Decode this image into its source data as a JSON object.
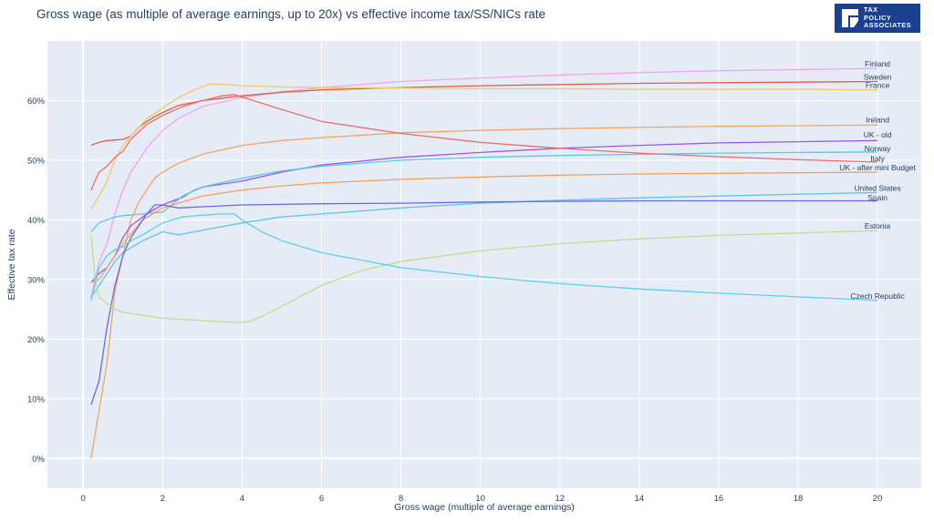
{
  "chart_data": {
    "type": "line",
    "title": "Gross wage (as multiple of average earnings, up to 20x) vs effective income tax/SS/NICs rate",
    "xlabel": "Gross wage (multiple of average earnings)",
    "ylabel": "Effective tax rate",
    "xlim": [
      -0.9,
      21.1
    ],
    "ylim": [
      -0.05,
      0.7
    ],
    "x_ticks": [
      0,
      2,
      4,
      6,
      8,
      10,
      12,
      14,
      16,
      18,
      20
    ],
    "y_ticks": [
      0,
      0.1,
      0.2,
      0.3,
      0.4,
      0.5,
      0.6
    ],
    "y_tick_labels": [
      "0%",
      "10%",
      "20%",
      "30%",
      "40%",
      "50%",
      "60%"
    ],
    "grid": true,
    "legend": "labels at line ends",
    "plot_background": "#e5ecf6",
    "series": [
      {
        "name": "Finland",
        "color": "#f2a3f2",
        "label_value": 0.662,
        "points": [
          [
            0.2,
            0.27
          ],
          [
            0.4,
            0.33
          ],
          [
            0.6,
            0.36
          ],
          [
            0.8,
            0.41
          ],
          [
            1,
            0.45
          ],
          [
            1.2,
            0.48
          ],
          [
            1.4,
            0.5
          ],
          [
            1.6,
            0.52
          ],
          [
            1.8,
            0.535
          ],
          [
            2,
            0.55
          ],
          [
            2.4,
            0.57
          ],
          [
            3,
            0.59
          ],
          [
            4,
            0.605
          ],
          [
            5,
            0.615
          ],
          [
            6,
            0.622
          ],
          [
            8,
            0.632
          ],
          [
            10,
            0.638
          ],
          [
            12,
            0.643
          ],
          [
            14,
            0.647
          ],
          [
            16,
            0.65
          ],
          [
            18,
            0.652
          ],
          [
            20,
            0.654
          ]
        ]
      },
      {
        "name": "Sweden",
        "color": "#e45b43",
        "label_value": 0.64,
        "points": [
          [
            0.2,
            0.525
          ],
          [
            0.4,
            0.53
          ],
          [
            0.6,
            0.533
          ],
          [
            0.8,
            0.534
          ],
          [
            1,
            0.535
          ],
          [
            1.2,
            0.54
          ],
          [
            1.4,
            0.555
          ],
          [
            1.6,
            0.565
          ],
          [
            1.8,
            0.573
          ],
          [
            2,
            0.58
          ],
          [
            2.4,
            0.592
          ],
          [
            3,
            0.6
          ],
          [
            4,
            0.608
          ],
          [
            5,
            0.614
          ],
          [
            6,
            0.618
          ],
          [
            8,
            0.622
          ],
          [
            10,
            0.625
          ],
          [
            12,
            0.627
          ],
          [
            14,
            0.629
          ],
          [
            16,
            0.63
          ],
          [
            18,
            0.631
          ],
          [
            20,
            0.632
          ]
        ]
      },
      {
        "name": "France",
        "color": "#f4c862",
        "label_value": 0.626,
        "points": [
          [
            0.2,
            0.418
          ],
          [
            0.4,
            0.44
          ],
          [
            0.6,
            0.465
          ],
          [
            0.8,
            0.5
          ],
          [
            1,
            0.525
          ],
          [
            1.2,
            0.54
          ],
          [
            1.4,
            0.555
          ],
          [
            1.6,
            0.57
          ],
          [
            1.8,
            0.578
          ],
          [
            2,
            0.588
          ],
          [
            2.4,
            0.605
          ],
          [
            2.8,
            0.618
          ],
          [
            3.2,
            0.628
          ],
          [
            3.6,
            0.627
          ],
          [
            4,
            0.625
          ],
          [
            5,
            0.623
          ],
          [
            6,
            0.622
          ],
          [
            8,
            0.621
          ],
          [
            10,
            0.62
          ],
          [
            12,
            0.62
          ],
          [
            14,
            0.619
          ],
          [
            16,
            0.619
          ],
          [
            18,
            0.619
          ],
          [
            20,
            0.618
          ]
        ]
      },
      {
        "name": "Ireland",
        "color": "#f4a460",
        "label_value": 0.568,
        "points": [
          [
            0.2,
            0.0
          ],
          [
            0.4,
            0.08
          ],
          [
            0.6,
            0.16
          ],
          [
            0.8,
            0.28
          ],
          [
            1,
            0.34
          ],
          [
            1.2,
            0.4
          ],
          [
            1.4,
            0.43
          ],
          [
            1.6,
            0.45
          ],
          [
            1.8,
            0.47
          ],
          [
            2,
            0.48
          ],
          [
            2.4,
            0.495
          ],
          [
            3,
            0.51
          ],
          [
            4,
            0.525
          ],
          [
            5,
            0.533
          ],
          [
            6,
            0.538
          ],
          [
            8,
            0.546
          ],
          [
            10,
            0.55
          ],
          [
            12,
            0.553
          ],
          [
            14,
            0.555
          ],
          [
            16,
            0.557
          ],
          [
            18,
            0.558
          ],
          [
            20,
            0.559
          ]
        ]
      },
      {
        "name": "UK - old",
        "color": "#9b59e8",
        "label_value": 0.543,
        "points": [
          [
            0.2,
            0.295
          ],
          [
            0.4,
            0.31
          ],
          [
            0.6,
            0.32
          ],
          [
            0.8,
            0.34
          ],
          [
            1,
            0.37
          ],
          [
            1.2,
            0.39
          ],
          [
            1.4,
            0.4
          ],
          [
            1.6,
            0.41
          ],
          [
            1.8,
            0.418
          ],
          [
            2,
            0.425
          ],
          [
            2.5,
            0.438
          ],
          [
            2.8,
            0.45
          ],
          [
            3,
            0.455
          ],
          [
            3.5,
            0.46
          ],
          [
            4,
            0.465
          ],
          [
            5,
            0.48
          ],
          [
            6,
            0.492
          ],
          [
            8,
            0.505
          ],
          [
            10,
            0.513
          ],
          [
            12,
            0.52
          ],
          [
            14,
            0.525
          ],
          [
            16,
            0.529
          ],
          [
            18,
            0.531
          ],
          [
            20,
            0.533
          ]
        ]
      },
      {
        "name": "Norway",
        "color": "#5bc8e8",
        "label_value": 0.52,
        "points": [
          [
            0.2,
            0.38
          ],
          [
            0.4,
            0.395
          ],
          [
            0.6,
            0.4
          ],
          [
            0.8,
            0.405
          ],
          [
            1,
            0.407
          ],
          [
            1.5,
            0.41
          ],
          [
            2,
            0.413
          ],
          [
            2.5,
            0.44
          ],
          [
            3,
            0.455
          ],
          [
            4,
            0.47
          ],
          [
            5,
            0.482
          ],
          [
            6,
            0.49
          ],
          [
            8,
            0.5
          ],
          [
            10,
            0.505
          ],
          [
            12,
            0.508
          ],
          [
            14,
            0.51
          ],
          [
            16,
            0.512
          ],
          [
            18,
            0.513
          ],
          [
            20,
            0.514
          ]
        ]
      },
      {
        "name": "Italy",
        "color": "#ea6e6e",
        "label_value": 0.503,
        "points": [
          [
            0.2,
            0.45
          ],
          [
            0.4,
            0.48
          ],
          [
            0.6,
            0.49
          ],
          [
            0.8,
            0.505
          ],
          [
            1,
            0.515
          ],
          [
            1.2,
            0.535
          ],
          [
            1.6,
            0.56
          ],
          [
            2,
            0.575
          ],
          [
            2.5,
            0.59
          ],
          [
            3,
            0.6
          ],
          [
            3.5,
            0.608
          ],
          [
            3.8,
            0.61
          ],
          [
            4,
            0.606
          ],
          [
            5,
            0.585
          ],
          [
            6,
            0.565
          ],
          [
            8,
            0.545
          ],
          [
            10,
            0.53
          ],
          [
            12,
            0.52
          ],
          [
            14,
            0.512
          ],
          [
            16,
            0.506
          ],
          [
            18,
            0.501
          ],
          [
            20,
            0.497
          ]
        ]
      },
      {
        "name": "UK - after mini Budget",
        "color": "#f5a05a",
        "label_value": 0.488,
        "points": [
          [
            0.2,
            0.295
          ],
          [
            0.4,
            0.3
          ],
          [
            0.6,
            0.32
          ],
          [
            0.8,
            0.34
          ],
          [
            1,
            0.36
          ],
          [
            1.5,
            0.4
          ],
          [
            2,
            0.42
          ],
          [
            2.5,
            0.43
          ],
          [
            3,
            0.44
          ],
          [
            4,
            0.45
          ],
          [
            5,
            0.457
          ],
          [
            6,
            0.462
          ],
          [
            8,
            0.468
          ],
          [
            10,
            0.472
          ],
          [
            12,
            0.475
          ],
          [
            14,
            0.477
          ],
          [
            16,
            0.478
          ],
          [
            18,
            0.479
          ],
          [
            20,
            0.48
          ]
        ]
      },
      {
        "name": "United States",
        "color": "#5fc3ea",
        "label_value": 0.453,
        "points": [
          [
            0.2,
            0.27
          ],
          [
            0.4,
            0.29
          ],
          [
            0.6,
            0.31
          ],
          [
            0.8,
            0.33
          ],
          [
            1,
            0.345
          ],
          [
            1.5,
            0.365
          ],
          [
            2,
            0.38
          ],
          [
            2.4,
            0.375
          ],
          [
            2.8,
            0.38
          ],
          [
            3.2,
            0.385
          ],
          [
            4,
            0.395
          ],
          [
            5,
            0.405
          ],
          [
            6,
            0.41
          ],
          [
            8,
            0.42
          ],
          [
            10,
            0.428
          ],
          [
            12,
            0.433
          ],
          [
            14,
            0.437
          ],
          [
            16,
            0.44
          ],
          [
            18,
            0.443
          ],
          [
            20,
            0.446
          ]
        ]
      },
      {
        "name": "Spain",
        "color": "#6a6ae0",
        "label_value": 0.437,
        "points": [
          [
            0.2,
            0.09
          ],
          [
            0.4,
            0.13
          ],
          [
            0.6,
            0.22
          ],
          [
            0.8,
            0.29
          ],
          [
            1,
            0.34
          ],
          [
            1.2,
            0.37
          ],
          [
            1.4,
            0.39
          ],
          [
            1.6,
            0.41
          ],
          [
            1.8,
            0.425
          ],
          [
            2,
            0.425
          ],
          [
            2.4,
            0.42
          ],
          [
            3,
            0.422
          ],
          [
            4,
            0.425
          ],
          [
            6,
            0.427
          ],
          [
            8,
            0.428
          ],
          [
            10,
            0.43
          ],
          [
            12,
            0.431
          ],
          [
            14,
            0.432
          ],
          [
            16,
            0.432
          ],
          [
            18,
            0.432
          ],
          [
            20,
            0.432
          ]
        ]
      },
      {
        "name": "Estonia",
        "color": "#bfe08a",
        "label_value": 0.39,
        "points": [
          [
            0.2,
            0.375
          ],
          [
            0.3,
            0.3
          ],
          [
            0.4,
            0.27
          ],
          [
            0.6,
            0.26
          ],
          [
            0.8,
            0.25
          ],
          [
            1,
            0.245
          ],
          [
            1.5,
            0.24
          ],
          [
            2,
            0.235
          ],
          [
            2.5,
            0.233
          ],
          [
            3,
            0.231
          ],
          [
            3.5,
            0.229
          ],
          [
            4,
            0.228
          ],
          [
            4.2,
            0.23
          ],
          [
            4.5,
            0.238
          ],
          [
            5,
            0.255
          ],
          [
            6,
            0.29
          ],
          [
            7,
            0.315
          ],
          [
            8,
            0.33
          ],
          [
            10,
            0.348
          ],
          [
            12,
            0.36
          ],
          [
            14,
            0.368
          ],
          [
            16,
            0.374
          ],
          [
            18,
            0.378
          ],
          [
            20,
            0.382
          ]
        ]
      },
      {
        "name": "Czech Republic",
        "color": "#5ad0ee",
        "label_value": 0.272,
        "points": [
          [
            0.2,
            0.265
          ],
          [
            0.4,
            0.32
          ],
          [
            0.6,
            0.34
          ],
          [
            0.8,
            0.35
          ],
          [
            1,
            0.355
          ],
          [
            1.2,
            0.365
          ],
          [
            1.5,
            0.375
          ],
          [
            2,
            0.395
          ],
          [
            2.5,
            0.405
          ],
          [
            3,
            0.408
          ],
          [
            3.5,
            0.41
          ],
          [
            3.8,
            0.41
          ],
          [
            4,
            0.4
          ],
          [
            4.5,
            0.38
          ],
          [
            5,
            0.365
          ],
          [
            6,
            0.345
          ],
          [
            8,
            0.32
          ],
          [
            10,
            0.305
          ],
          [
            12,
            0.293
          ],
          [
            14,
            0.284
          ],
          [
            16,
            0.277
          ],
          [
            18,
            0.271
          ],
          [
            20,
            0.265
          ]
        ]
      }
    ]
  },
  "logo": {
    "line1": "TAX",
    "line2": "POLICY",
    "line3": "ASSOCIATES",
    "color": "#1d3f8f"
  }
}
